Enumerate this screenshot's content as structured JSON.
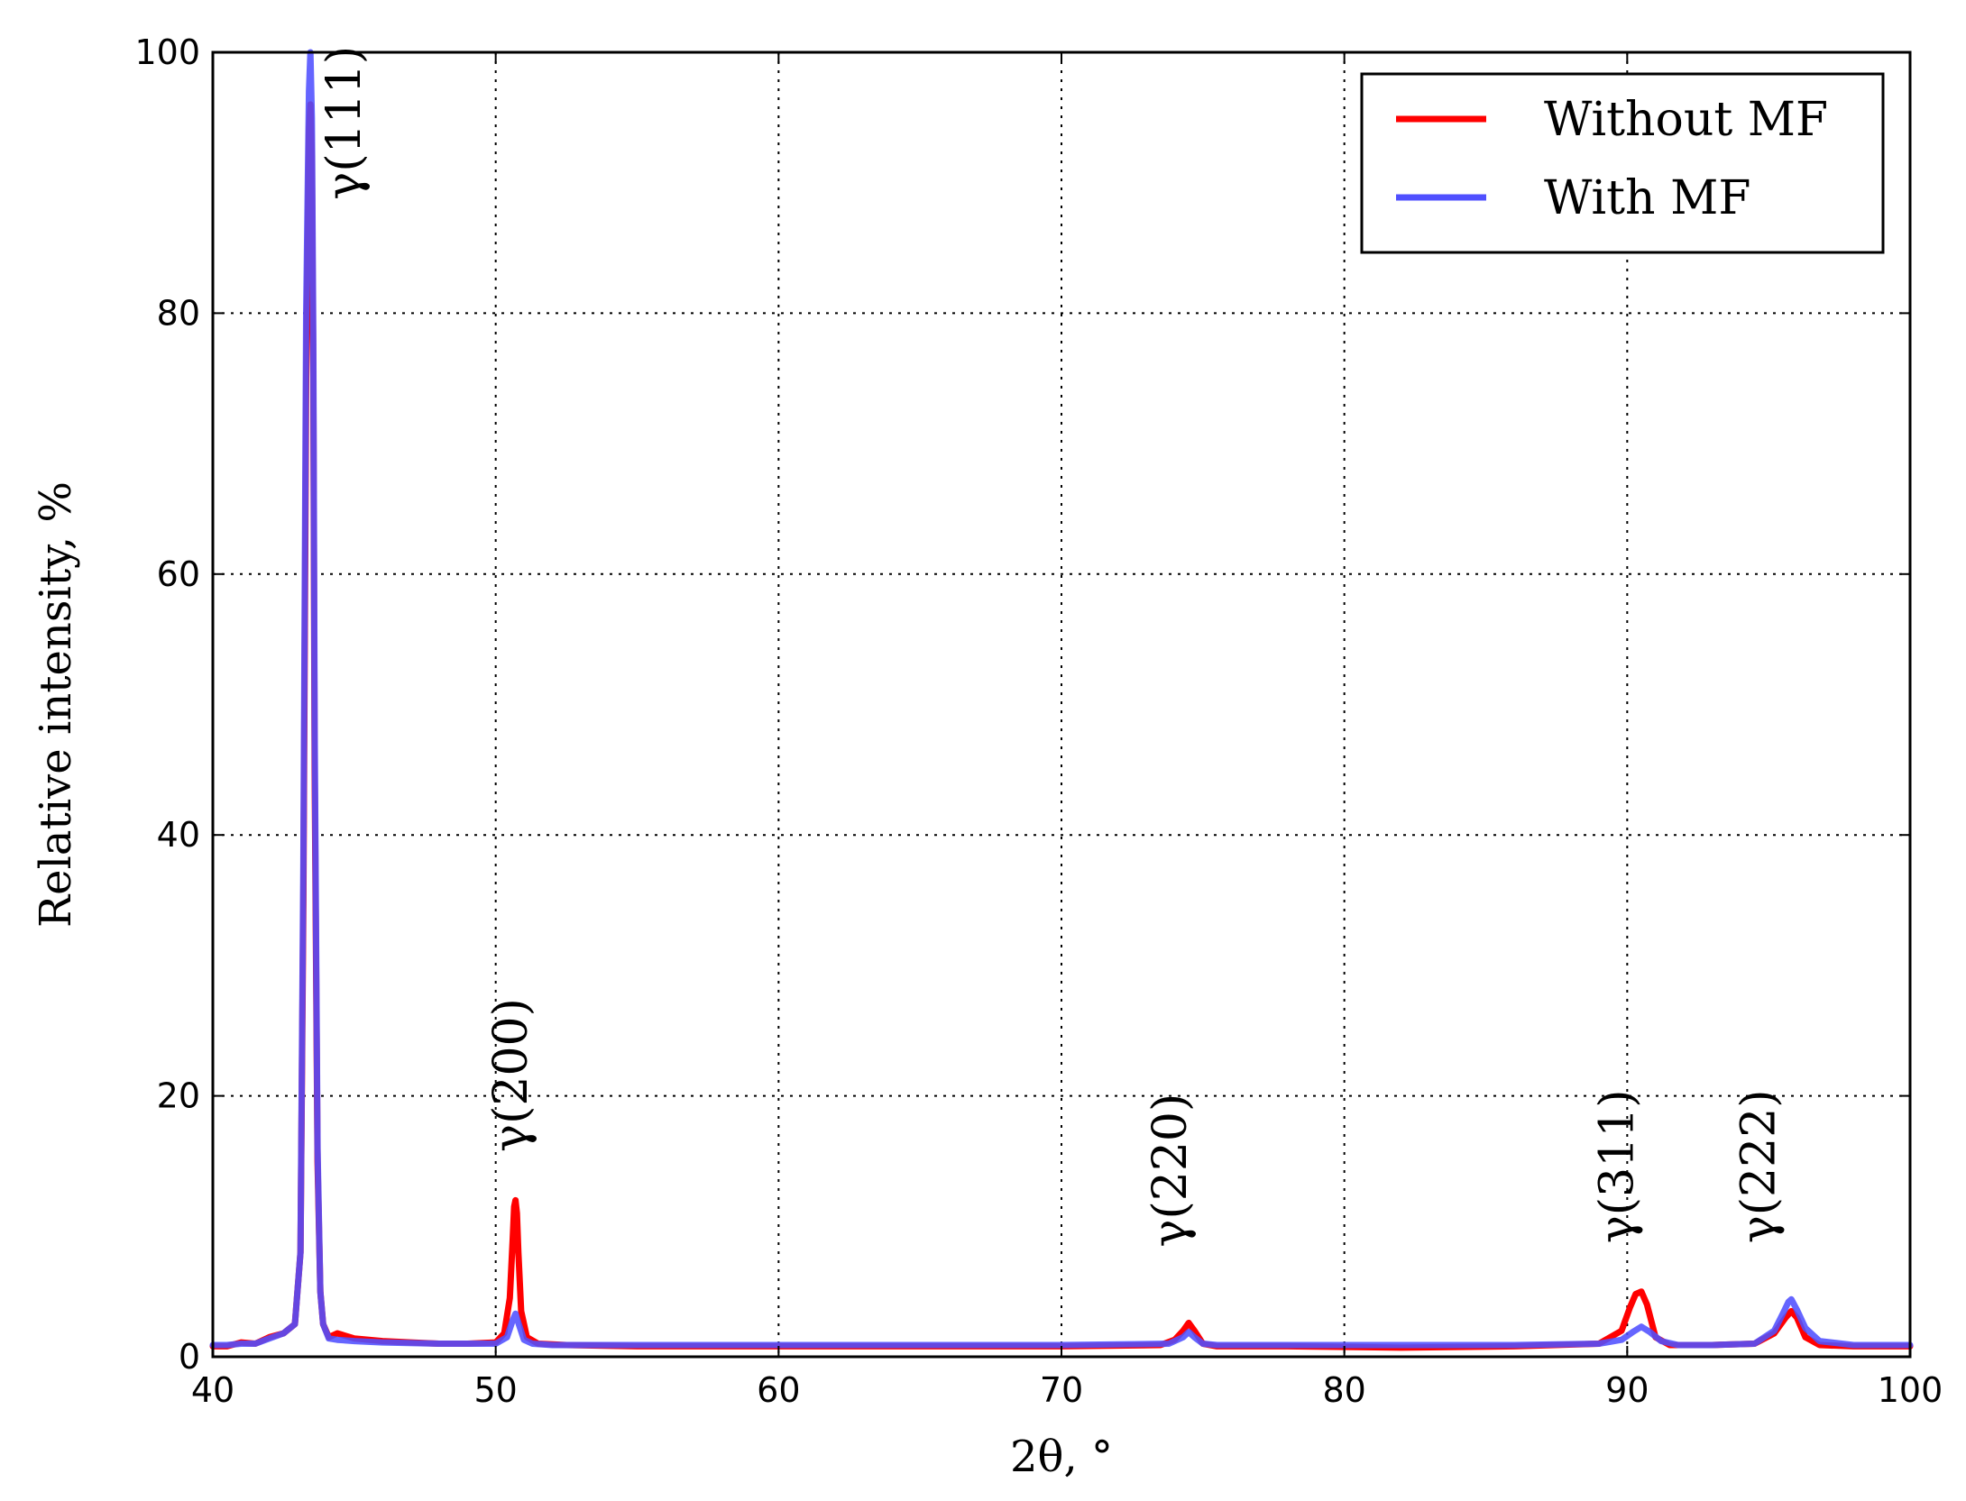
{
  "chart_data": {
    "type": "line",
    "xlabel": "2θ, °",
    "ylabel": "Relative intensity, %",
    "xlim": [
      40,
      100
    ],
    "ylim": [
      0,
      100
    ],
    "xticks": [
      40,
      50,
      60,
      70,
      80,
      90,
      100
    ],
    "yticks": [
      0,
      20,
      40,
      60,
      80,
      100
    ],
    "grid": true,
    "legend_position": "top-right",
    "series": [
      {
        "name": "Without MF",
        "color": "#ff0000",
        "x": [
          40.0,
          40.5,
          41.0,
          41.5,
          42.0,
          42.5,
          42.9,
          43.1,
          43.2,
          43.3,
          43.4,
          43.45,
          43.5,
          43.55,
          43.6,
          43.7,
          43.8,
          43.9,
          44.1,
          44.4,
          45.0,
          46.0,
          47.0,
          48.0,
          49.0,
          50.0,
          50.3,
          50.5,
          50.6,
          50.65,
          50.7,
          50.75,
          50.8,
          50.9,
          51.1,
          51.5,
          52.5,
          55.0,
          60.0,
          65.0,
          70.0,
          73.5,
          74.0,
          74.3,
          74.5,
          74.7,
          75.0,
          75.5,
          78.0,
          82.0,
          86.0,
          89.0,
          89.8,
          90.1,
          90.3,
          90.5,
          90.7,
          91.0,
          91.5,
          93.0,
          94.5,
          95.2,
          95.6,
          95.8,
          96.0,
          96.3,
          96.8,
          98.0,
          100.0
        ],
        "y": [
          0.8,
          0.8,
          1.1,
          1.0,
          1.5,
          1.8,
          2.5,
          8.0,
          35.0,
          75.0,
          94.0,
          96.0,
          92.0,
          75.0,
          45.0,
          15.0,
          5.0,
          2.5,
          1.5,
          1.8,
          1.4,
          1.2,
          1.1,
          1.0,
          1.0,
          1.1,
          1.8,
          4.5,
          9.0,
          11.5,
          12.0,
          11.0,
          8.0,
          3.5,
          1.5,
          1.0,
          0.9,
          0.8,
          0.8,
          0.8,
          0.8,
          0.9,
          1.3,
          2.0,
          2.6,
          2.0,
          1.0,
          0.8,
          0.8,
          0.7,
          0.8,
          1.0,
          2.0,
          3.8,
          4.8,
          5.0,
          4.0,
          1.5,
          0.9,
          0.9,
          1.0,
          1.8,
          3.0,
          3.5,
          3.0,
          1.5,
          0.9,
          0.8,
          0.8
        ]
      },
      {
        "name": "With MF",
        "color": "#5050ff",
        "x": [
          40.0,
          40.5,
          41.0,
          41.5,
          42.0,
          42.5,
          42.9,
          43.1,
          43.2,
          43.3,
          43.4,
          43.45,
          43.5,
          43.55,
          43.6,
          43.7,
          43.8,
          43.9,
          44.1,
          44.4,
          45.0,
          46.0,
          48.0,
          50.0,
          50.4,
          50.6,
          50.7,
          50.8,
          51.0,
          51.3,
          52.0,
          55.0,
          60.0,
          65.0,
          70.0,
          73.8,
          74.3,
          74.5,
          74.7,
          75.0,
          75.5,
          78.0,
          82.0,
          86.0,
          89.0,
          89.8,
          90.2,
          90.5,
          90.8,
          91.2,
          91.8,
          93.0,
          94.5,
          95.2,
          95.5,
          95.7,
          95.8,
          96.0,
          96.3,
          96.8,
          98.0,
          100.0
        ],
        "y": [
          0.9,
          0.9,
          1.0,
          1.0,
          1.4,
          1.8,
          2.5,
          8.0,
          38.0,
          80.0,
          97.0,
          100.0,
          95.0,
          78.0,
          48.0,
          16.0,
          5.0,
          2.5,
          1.4,
          1.3,
          1.2,
          1.1,
          1.0,
          1.0,
          1.5,
          2.8,
          3.3,
          2.6,
          1.3,
          1.0,
          0.9,
          0.9,
          0.9,
          0.9,
          0.9,
          1.0,
          1.5,
          1.9,
          1.5,
          1.0,
          0.9,
          0.9,
          0.9,
          0.9,
          1.0,
          1.3,
          1.9,
          2.3,
          1.9,
          1.2,
          0.9,
          0.9,
          1.0,
          2.0,
          3.3,
          4.2,
          4.4,
          3.6,
          2.2,
          1.2,
          0.9,
          0.9
        ]
      }
    ],
    "annotations": [
      {
        "text": "γ(111)",
        "x": 45.2,
        "y": 100.5
      },
      {
        "text": "γ(200)",
        "x": 51.1,
        "y": 27.5
      },
      {
        "text": "γ(220)",
        "x": 74.4,
        "y": 20.2
      },
      {
        "text": "γ(311)",
        "x": 90.2,
        "y": 20.5
      },
      {
        "text": "γ(222)",
        "x": 95.2,
        "y": 20.5
      }
    ]
  }
}
